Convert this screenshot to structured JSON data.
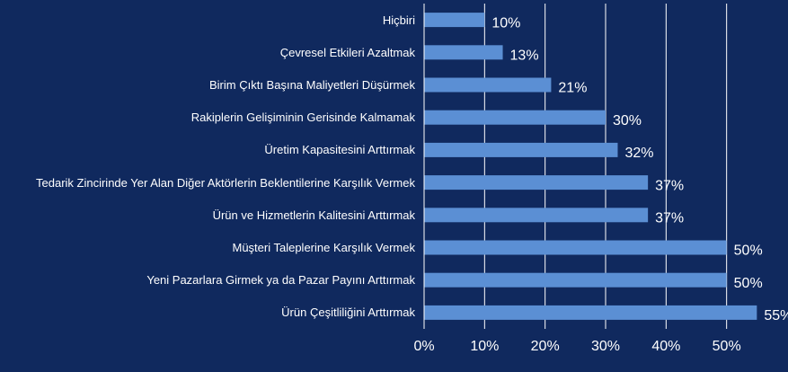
{
  "chart_data": {
    "type": "barh",
    "color": "#5b8fd4",
    "background": "#10295e",
    "grid": true,
    "categories": [
      "Hiçbiri",
      "Çevresel Etkileri Azaltmak",
      "Birim Çıktı Başına Maliyetleri Düşürmek",
      "Rakiplerin Gelişiminin Gerisinde Kalmamak",
      "Üretim Kapasitesini Arttırmak",
      "Tedarik Zincirinde Yer Alan Diğer Aktörlerin Beklentilerine Karşılık Vermek",
      "Ürün ve Hizmetlerin Kalitesini Arttırmak",
      "Müşteri Taleplerine Karşılık Vermek",
      "Yeni Pazarlara Girmek ya da Pazar Payını Arttırmak",
      "Ürün Çeşitliliğini Arttırmak"
    ],
    "values": [
      10,
      13,
      21,
      30,
      32,
      37,
      37,
      50,
      50,
      55
    ],
    "value_labels": [
      "10%",
      "13%",
      "21%",
      "30%",
      "32%",
      "37%",
      "37%",
      "50%",
      "50%",
      "55%"
    ],
    "xlim": [
      0,
      60
    ],
    "xticks": [
      {
        "value": 0,
        "label": "0%"
      },
      {
        "value": 10,
        "label": "10%"
      },
      {
        "value": 20,
        "label": "20%"
      },
      {
        "value": 30,
        "label": "30%"
      },
      {
        "value": 40,
        "label": "40%"
      },
      {
        "value": 50,
        "label": "50%"
      }
    ]
  }
}
